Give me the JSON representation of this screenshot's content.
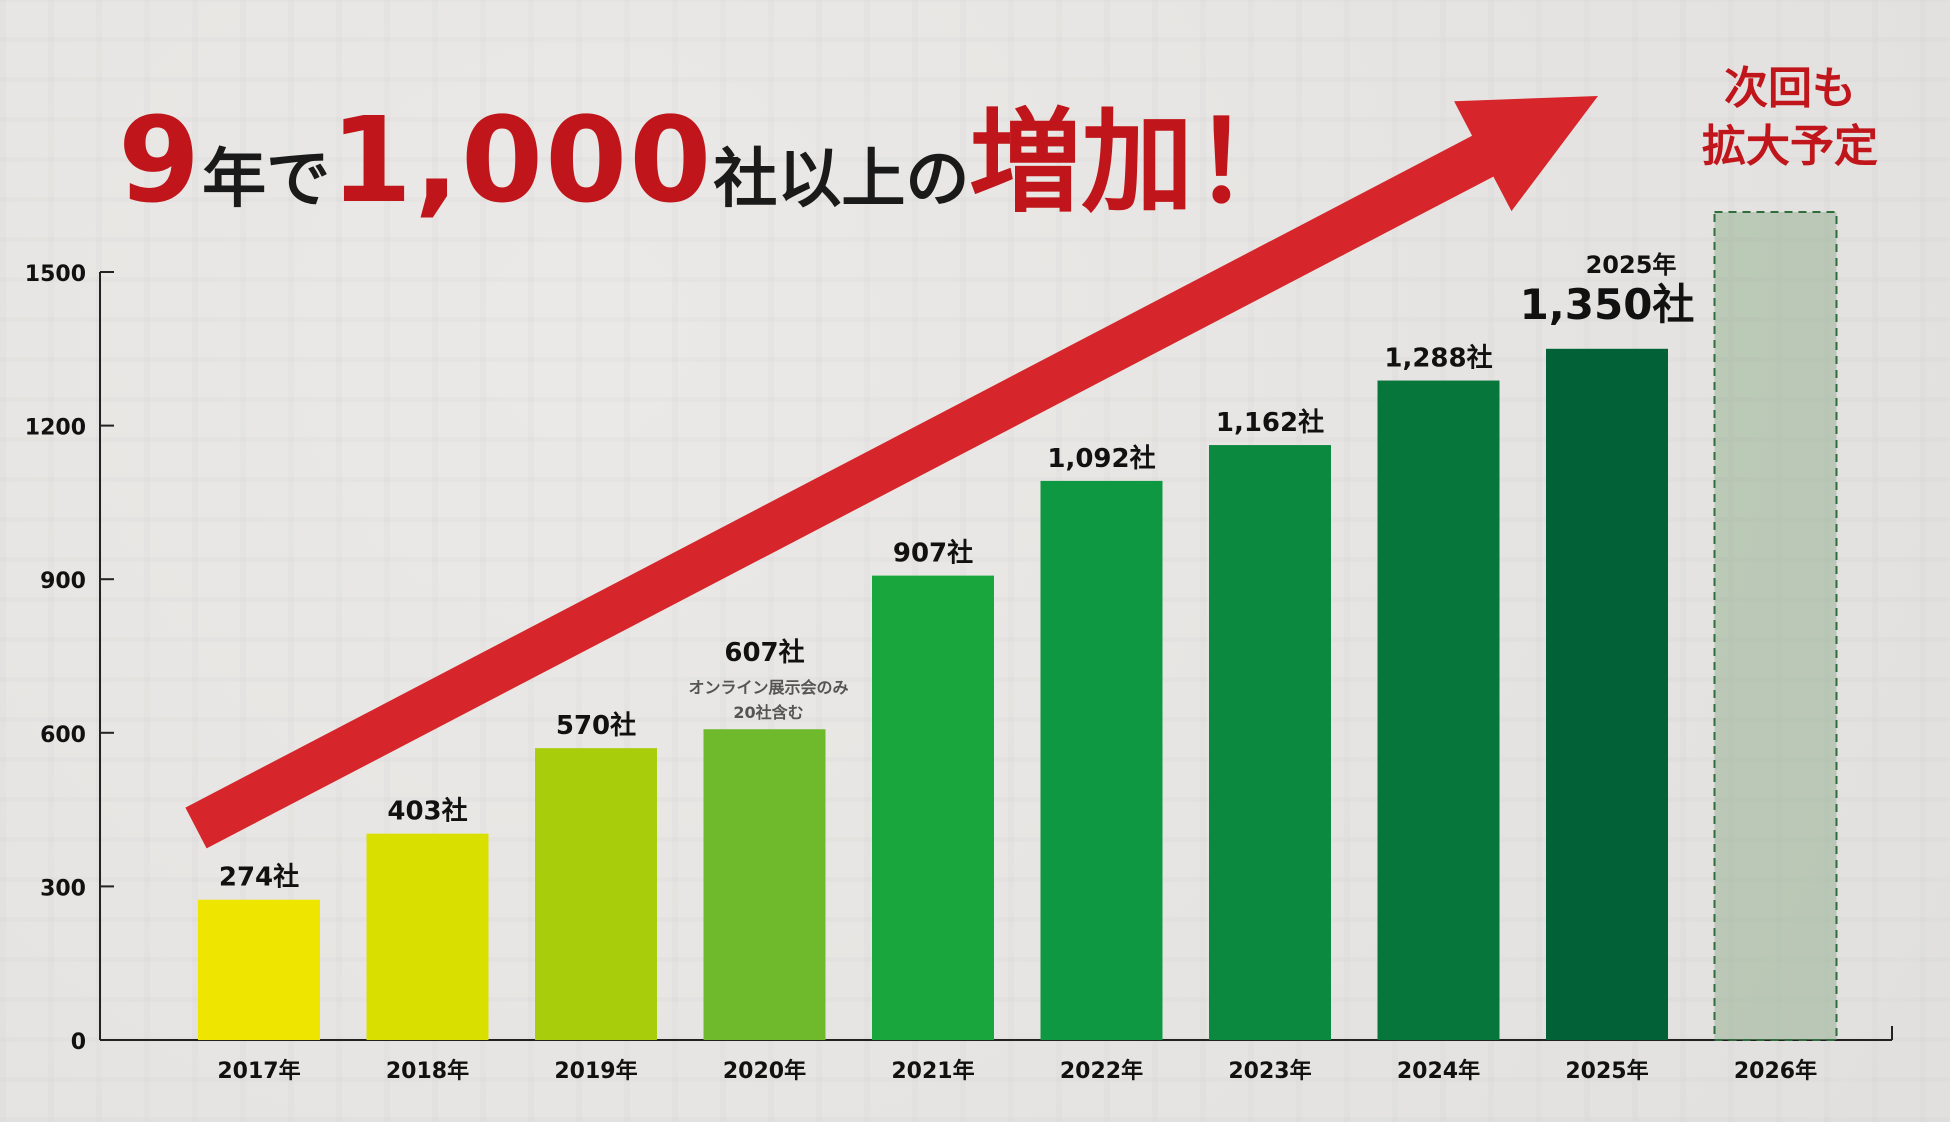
{
  "headline": {
    "part1": "9",
    "part2": "年で",
    "part3": "1,000",
    "part4": "社以上の",
    "part5": "増加！"
  },
  "future_note": {
    "line1": "次回も",
    "line2": "拡大予定"
  },
  "chart_data": {
    "type": "bar",
    "categories": [
      "2017年",
      "2018年",
      "2019年",
      "2020年",
      "2021年",
      "2022年",
      "2023年",
      "2024年",
      "2025年",
      "2026年"
    ],
    "values": [
      274,
      403,
      570,
      607,
      907,
      1092,
      1162,
      1288,
      1350,
      null
    ],
    "data_labels": [
      "274社",
      "403社",
      "570社",
      "607社",
      "907社",
      "1,092社",
      "1,162社",
      "1,288社",
      "1,350社",
      ""
    ],
    "extra_label_2020": [
      "オンライン展示会のみ",
      "20社含む"
    ],
    "highlight_2025_year": "2025年",
    "yticks": [
      0,
      300,
      600,
      900,
      1200,
      1500
    ],
    "ylim": [
      0,
      1500
    ],
    "bar_colors": [
      "#eee600",
      "#d9e000",
      "#a8cd0a",
      "#6fba2c",
      "#19a63c",
      "#0f9842",
      "#0b8a3f",
      "#07763a",
      "#036138",
      "#8aa884"
    ],
    "arrow_color": "#d6262b",
    "grid": false
  }
}
